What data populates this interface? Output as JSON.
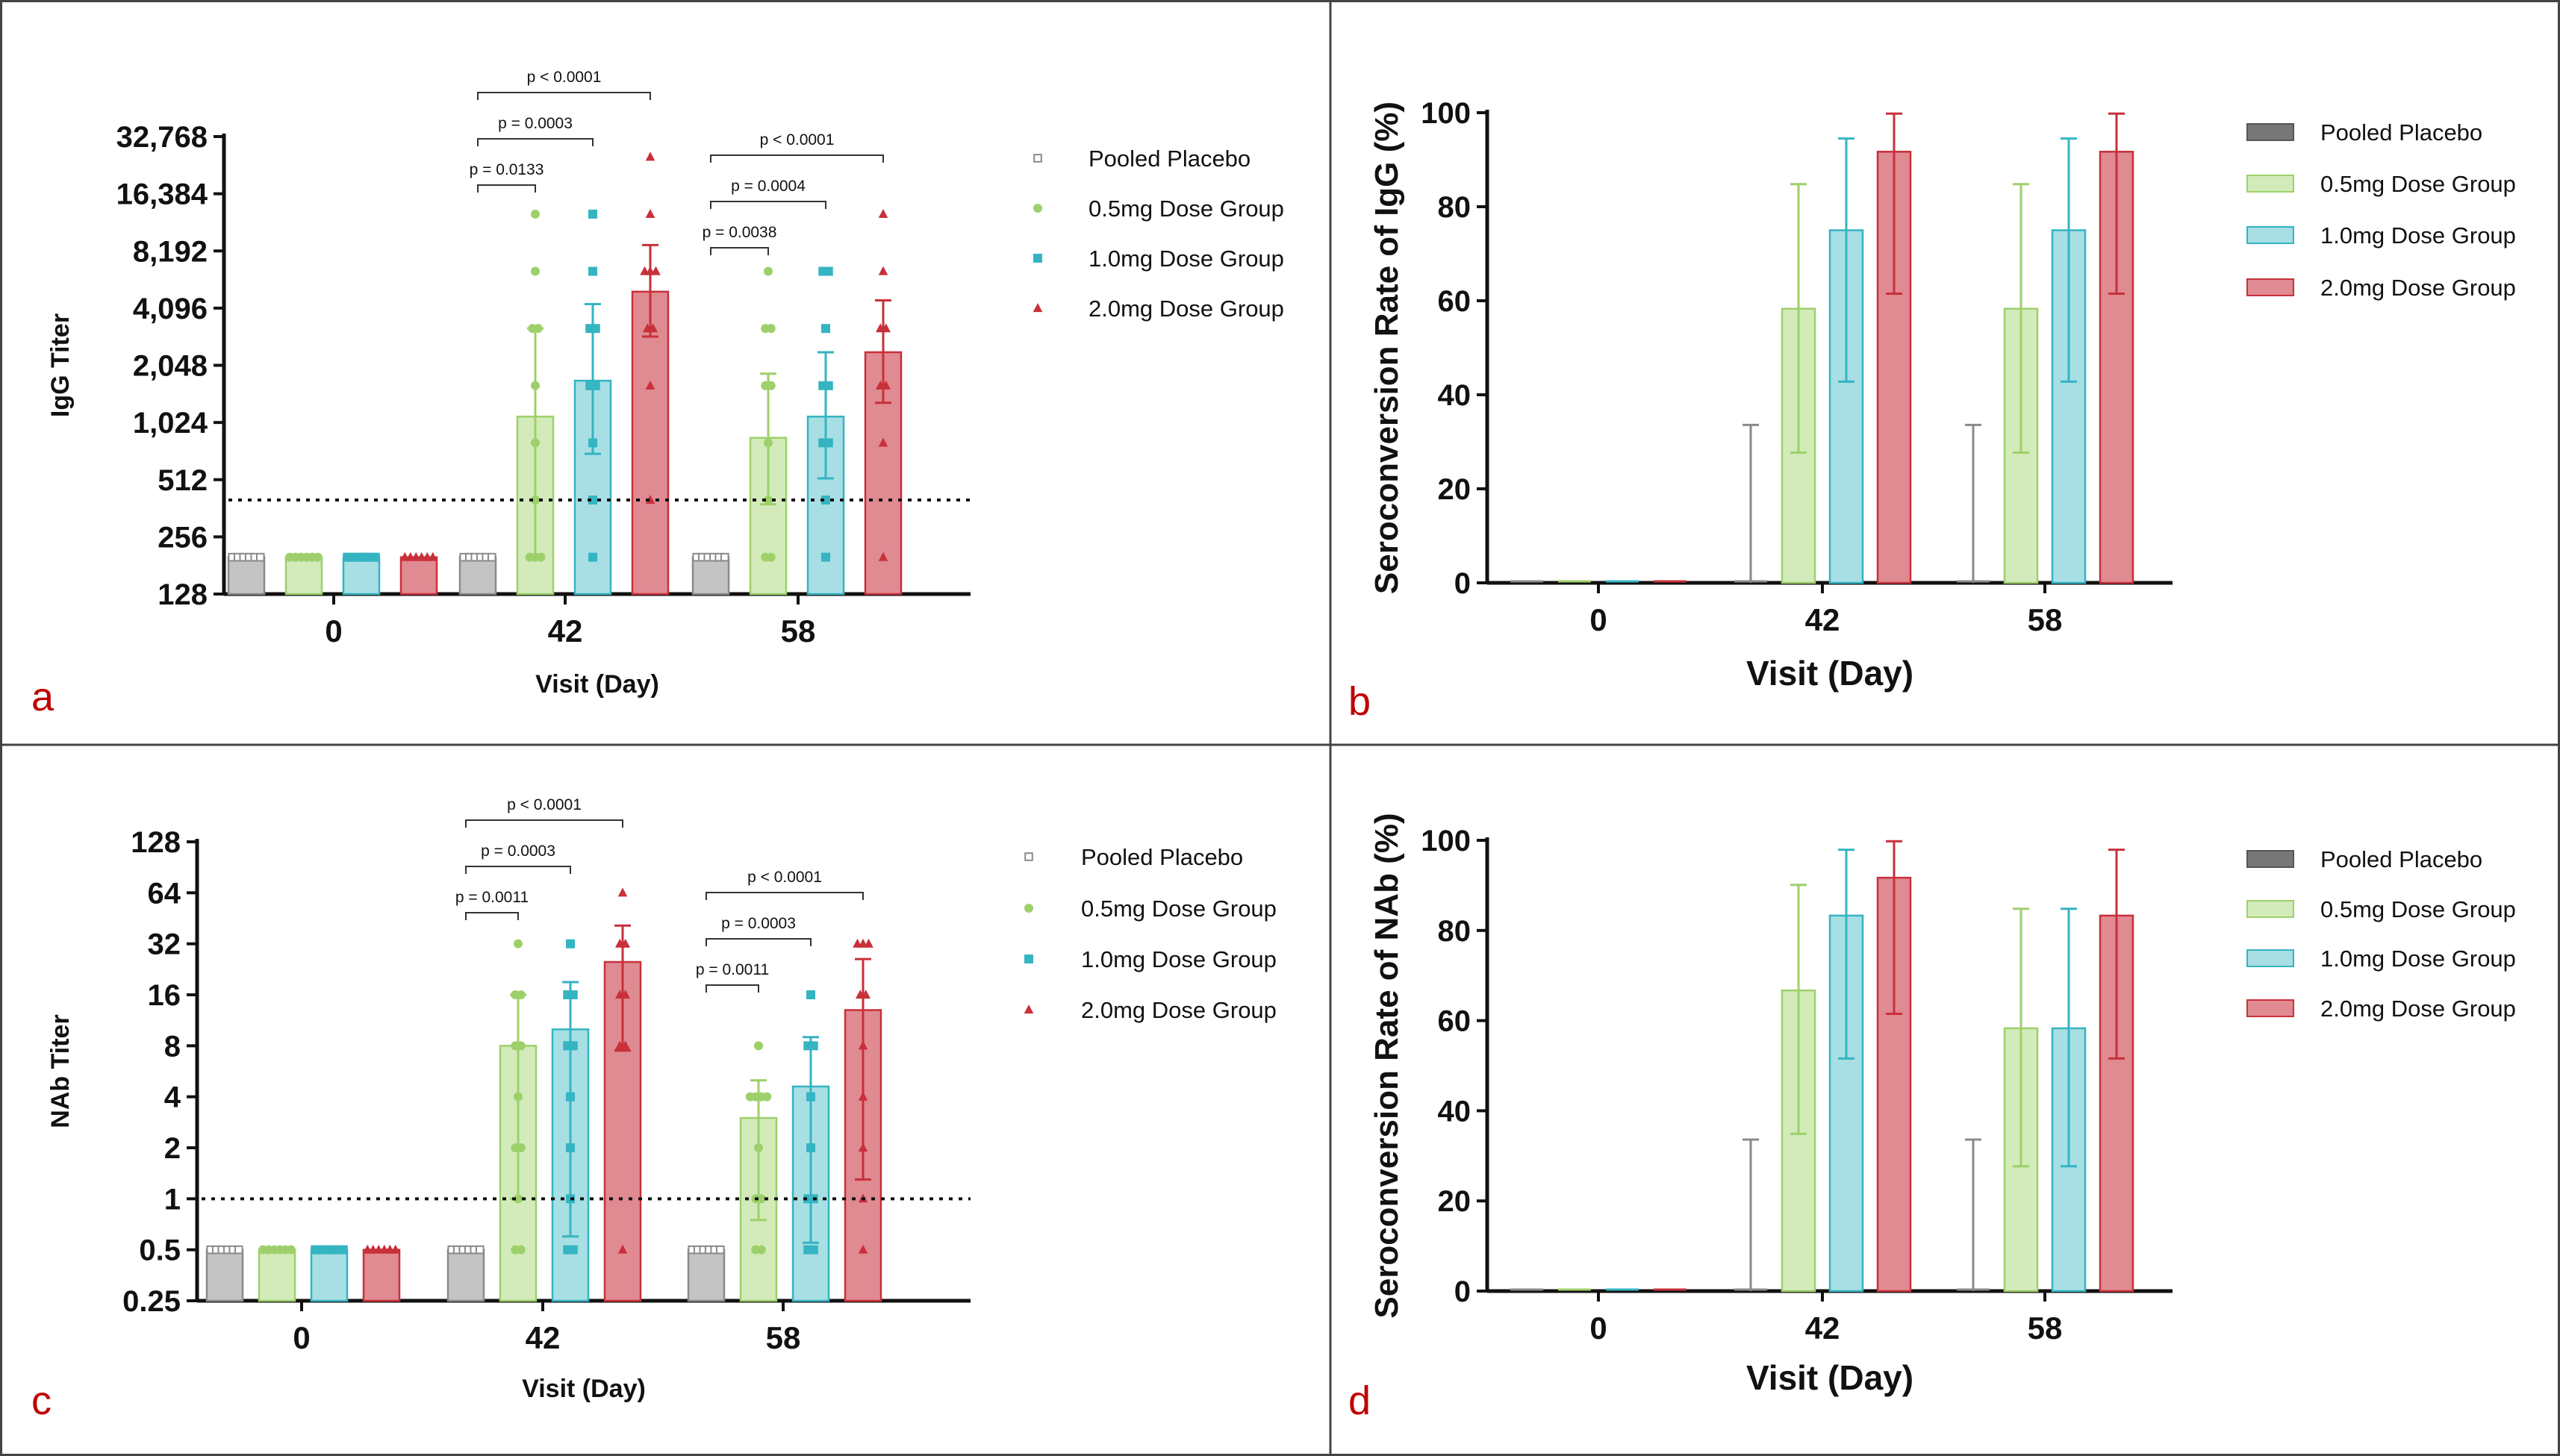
{
  "colors": {
    "placebo": "#8a8a8a",
    "placebo_fill": "#c4c4c4",
    "dose05": "#9dd06a",
    "dose05_fill": "#d3ebba",
    "dose10": "#35b4c2",
    "dose10_fill": "#a7dfe4",
    "dose20": "#c8303a",
    "dose20_fill": "#e08a92",
    "panel_label": "#c00000"
  },
  "legend": {
    "entries": [
      "Pooled Placebo",
      "0.5mg Dose Group",
      "1.0mg Dose Group",
      "2.0mg Dose Group"
    ]
  },
  "chart_data": [
    {
      "id": "a",
      "panel_label": "a",
      "type": "bar",
      "scale": "log2",
      "ylabel": "IgG Titer",
      "xlabel": "Visit (Day)",
      "categories": [
        "0",
        "42",
        "58"
      ],
      "yticks": [
        "128",
        "256",
        "512",
        "1,024",
        "2,048",
        "4,096",
        "8,192",
        "16,384",
        "32,768"
      ],
      "ytick_values": [
        128,
        256,
        512,
        1024,
        2048,
        4096,
        8192,
        16384,
        32768
      ],
      "ylim": [
        128,
        32768
      ],
      "threshold": 400,
      "legend_style": "markers",
      "series": [
        {
          "name": "Pooled Placebo",
          "values": [
            200,
            200,
            200
          ],
          "err_low": [
            200,
            200,
            200
          ],
          "err_high": [
            200,
            200,
            200
          ],
          "points": [
            [
              200,
              200,
              200,
              200,
              200,
              200
            ],
            [
              200,
              200,
              200,
              200,
              200,
              200
            ],
            [
              200,
              200,
              200,
              200,
              200,
              200
            ]
          ]
        },
        {
          "name": "0.5mg Dose Group",
          "values": [
            200,
            1100,
            850
          ],
          "err_low": [
            200,
            200,
            380
          ],
          "err_high": [
            200,
            3200,
            1850
          ],
          "points": [
            [
              200,
              200,
              200,
              200,
              200,
              200
            ],
            [
              200,
              200,
              200,
              400,
              800,
              1600,
              3200,
              3200,
              6400,
              12800
            ],
            [
              200,
              200,
              400,
              800,
              1600,
              1600,
              3200,
              3200,
              6400
            ]
          ]
        },
        {
          "name": "1.0mg Dose Group",
          "values": [
            200,
            1700,
            1100
          ],
          "err_low": [
            200,
            700,
            520
          ],
          "err_high": [
            200,
            4300,
            2400
          ],
          "points": [
            [
              200,
              200,
              200,
              200,
              200,
              200
            ],
            [
              200,
              400,
              800,
              1600,
              1600,
              3200,
              3200,
              6400,
              12800
            ],
            [
              200,
              400,
              800,
              800,
              1600,
              1600,
              3200,
              6400,
              6400
            ]
          ]
        },
        {
          "name": "2.0mg Dose Group",
          "values": [
            200,
            5000,
            2400
          ],
          "err_low": [
            200,
            2900,
            1300
          ],
          "err_high": [
            200,
            8800,
            4500
          ],
          "points": [
            [
              200,
              200,
              200,
              200,
              200,
              200
            ],
            [
              400,
              1600,
              3200,
              3200,
              6400,
              6400,
              6400,
              12800,
              25600
            ],
            [
              200,
              800,
              1600,
              1600,
              3200,
              3200,
              6400,
              12800
            ]
          ]
        }
      ],
      "pvalues": [
        {
          "text": "p = 0.0133",
          "group": 1,
          "from": 0,
          "to": 1
        },
        {
          "text": "p = 0.0003",
          "group": 1,
          "from": 0,
          "to": 2
        },
        {
          "text": "p < 0.0001",
          "group": 1,
          "from": 0,
          "to": 3
        },
        {
          "text": "p = 0.0038",
          "group": 2,
          "from": 0,
          "to": 1
        },
        {
          "text": "p = 0.0004",
          "group": 2,
          "from": 0,
          "to": 2
        },
        {
          "text": "p < 0.0001",
          "group": 2,
          "from": 0,
          "to": 3
        }
      ]
    },
    {
      "id": "b",
      "panel_label": "b",
      "type": "bar",
      "scale": "linear",
      "ylabel": "Seroconversion Rate of IgG (%)",
      "xlabel": "Visit (Day)",
      "categories": [
        "0",
        "42",
        "58"
      ],
      "yticks": [
        "0",
        "20",
        "40",
        "60",
        "80",
        "100"
      ],
      "ytick_values": [
        0,
        20,
        40,
        60,
        80,
        100
      ],
      "ylim": [
        0,
        100
      ],
      "legend_style": "swatches",
      "series": [
        {
          "name": "Pooled Placebo",
          "values": [
            0,
            0,
            0
          ],
          "err_low": [
            0,
            0,
            0
          ],
          "err_high": [
            0,
            33.6,
            33.6
          ]
        },
        {
          "name": "0.5mg Dose Group",
          "values": [
            0,
            58.3,
            58.3
          ],
          "err_low": [
            0,
            27.7,
            27.7
          ],
          "err_high": [
            0,
            84.8,
            84.8
          ]
        },
        {
          "name": "1.0mg Dose Group",
          "values": [
            0,
            75.0,
            75.0
          ],
          "err_low": [
            0,
            42.8,
            42.8
          ],
          "err_high": [
            0,
            94.5,
            94.5
          ]
        },
        {
          "name": "2.0mg Dose Group",
          "values": [
            0,
            91.7,
            91.7
          ],
          "err_low": [
            0,
            61.5,
            61.5
          ],
          "err_high": [
            0,
            99.8,
            99.8
          ]
        }
      ]
    },
    {
      "id": "c",
      "panel_label": "c",
      "type": "bar",
      "scale": "log2",
      "ylabel": "NAb Titer",
      "xlabel": "Visit (Day)",
      "categories": [
        "0",
        "42",
        "58"
      ],
      "yticks": [
        "0.25",
        "0.5",
        "1",
        "2",
        "4",
        "8",
        "16",
        "32",
        "64",
        "128"
      ],
      "ytick_values": [
        0.25,
        0.5,
        1,
        2,
        4,
        8,
        16,
        32,
        64,
        128
      ],
      "ylim": [
        0.25,
        128
      ],
      "threshold": 1,
      "legend_style": "markers",
      "series": [
        {
          "name": "Pooled Placebo",
          "values": [
            0.5,
            0.5,
            0.5
          ],
          "err_low": [
            0.5,
            0.5,
            0.5
          ],
          "err_high": [
            0.5,
            0.5,
            0.5
          ],
          "points": [
            [
              0.5,
              0.5,
              0.5,
              0.5,
              0.5,
              0.5
            ],
            [
              0.5,
              0.5,
              0.5,
              0.5,
              0.5,
              0.5
            ],
            [
              0.5,
              0.5,
              0.5,
              0.5,
              0.5,
              0.5
            ]
          ]
        },
        {
          "name": "0.5mg Dose Group",
          "values": [
            0.5,
            8,
            3
          ],
          "err_low": [
            0.5,
            1,
            0.75
          ],
          "err_high": [
            0.5,
            16,
            5
          ],
          "points": [
            [
              0.5,
              0.5,
              0.5,
              0.5,
              0.5,
              0.5
            ],
            [
              0.5,
              0.5,
              1,
              2,
              2,
              4,
              8,
              8,
              16,
              16,
              32
            ],
            [
              0.5,
              0.5,
              1,
              1,
              2,
              4,
              4,
              4,
              4,
              8
            ]
          ]
        },
        {
          "name": "1.0mg Dose Group",
          "values": [
            0.5,
            10,
            4.6
          ],
          "err_low": [
            0.5,
            0.6,
            0.55
          ],
          "err_high": [
            0.5,
            19,
            9
          ],
          "points": [
            [
              0.5,
              0.5,
              0.5,
              0.5,
              0.5,
              0.5
            ],
            [
              0.5,
              0.5,
              1,
              2,
              4,
              8,
              8,
              16,
              16,
              32
            ],
            [
              0.5,
              0.5,
              1,
              1,
              2,
              4,
              8,
              8,
              16
            ]
          ]
        },
        {
          "name": "2.0mg Dose Group",
          "values": [
            0.5,
            25,
            13
          ],
          "err_low": [
            0.5,
            7.5,
            1.3
          ],
          "err_high": [
            0.5,
            41,
            26
          ],
          "points": [
            [
              0.5,
              0.5,
              0.5,
              0.5,
              0.5,
              0.5
            ],
            [
              0.5,
              8,
              8,
              16,
              16,
              32,
              32,
              64
            ],
            [
              0.5,
              1,
              2,
              4,
              8,
              16,
              16,
              32,
              32,
              32
            ]
          ]
        }
      ],
      "pvalues": [
        {
          "text": "p = 0.0011",
          "group": 1,
          "from": 0,
          "to": 1
        },
        {
          "text": "p = 0.0003",
          "group": 1,
          "from": 0,
          "to": 2
        },
        {
          "text": "p < 0.0001",
          "group": 1,
          "from": 0,
          "to": 3
        },
        {
          "text": "p = 0.0011",
          "group": 2,
          "from": 0,
          "to": 1
        },
        {
          "text": "p = 0.0003",
          "group": 2,
          "from": 0,
          "to": 2
        },
        {
          "text": "p < 0.0001",
          "group": 2,
          "from": 0,
          "to": 3
        }
      ]
    },
    {
      "id": "d",
      "panel_label": "d",
      "type": "bar",
      "scale": "linear",
      "ylabel": "Seroconversion Rate of NAb (%)",
      "xlabel": "Visit (Day)",
      "categories": [
        "0",
        "42",
        "58"
      ],
      "yticks": [
        "0",
        "20",
        "40",
        "60",
        "80",
        "100"
      ],
      "ytick_values": [
        0,
        20,
        40,
        60,
        80,
        100
      ],
      "ylim": [
        0,
        100
      ],
      "legend_style": "swatches",
      "series": [
        {
          "name": "Pooled Placebo",
          "values": [
            0,
            0,
            0
          ],
          "err_low": [
            0,
            0,
            0
          ],
          "err_high": [
            0,
            33.6,
            33.6
          ]
        },
        {
          "name": "0.5mg Dose Group",
          "values": [
            0,
            66.7,
            58.3
          ],
          "err_low": [
            0,
            34.9,
            27.7
          ],
          "err_high": [
            0,
            90.1,
            84.8
          ]
        },
        {
          "name": "1.0mg Dose Group",
          "values": [
            0,
            83.3,
            58.3
          ],
          "err_low": [
            0,
            51.6,
            27.7
          ],
          "err_high": [
            0,
            97.9,
            84.8
          ]
        },
        {
          "name": "2.0mg Dose Group",
          "values": [
            0,
            91.7,
            83.3
          ],
          "err_low": [
            0,
            61.5,
            51.6
          ],
          "err_high": [
            0,
            99.8,
            97.9
          ]
        }
      ]
    }
  ]
}
